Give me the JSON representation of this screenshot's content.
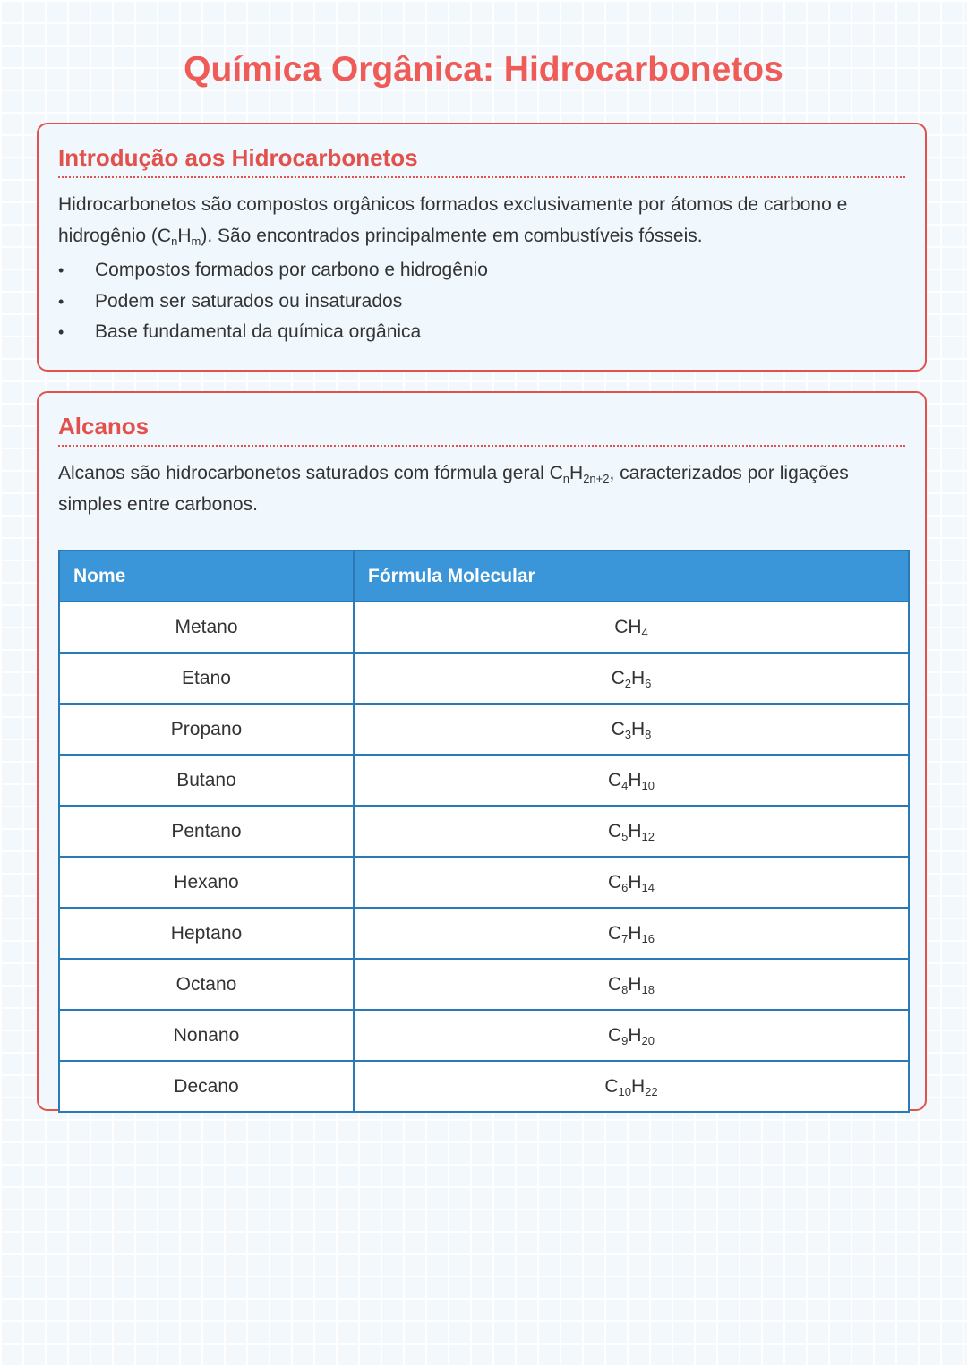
{
  "title": "Química Orgânica: Hidrocarbonetos",
  "intro": {
    "heading": "Introdução aos Hidrocarbonetos",
    "text_before": "Hidrocarbonetos são compostos orgânicos formados exclusivamente por átomos de carbono e hidrogênio (C",
    "sub1": "n",
    "mid": "H",
    "sub2": "m",
    "text_after": "). São encontrados principalmente em combustíveis fósseis.",
    "bullets": [
      "Compostos formados por carbono e hidrogênio",
      "Podem ser saturados ou insaturados",
      "Base fundamental da química orgânica"
    ]
  },
  "alkanes": {
    "heading": "Alcanos",
    "text_before": "Alcanos são hidrocarbonetos saturados com fórmula geral C",
    "sub1": "n",
    "mid": "H",
    "sub2": "2n+2",
    "text_after": ", caracterizados por ligações simples entre carbonos.",
    "columns": [
      "Nome",
      "Fórmula Molecular"
    ],
    "rows": [
      {
        "name": "Metano",
        "c": "",
        "h": "4"
      },
      {
        "name": "Etano",
        "c": "2",
        "h": "6"
      },
      {
        "name": "Propano",
        "c": "3",
        "h": "8"
      },
      {
        "name": "Butano",
        "c": "4",
        "h": "10"
      },
      {
        "name": "Pentano",
        "c": "5",
        "h": "12"
      },
      {
        "name": "Hexano",
        "c": "6",
        "h": "14"
      },
      {
        "name": "Heptano",
        "c": "7",
        "h": "16"
      },
      {
        "name": "Octano",
        "c": "8",
        "h": "18"
      },
      {
        "name": "Nonano",
        "c": "9",
        "h": "20"
      },
      {
        "name": "Decano",
        "c": "10",
        "h": "22"
      }
    ]
  }
}
